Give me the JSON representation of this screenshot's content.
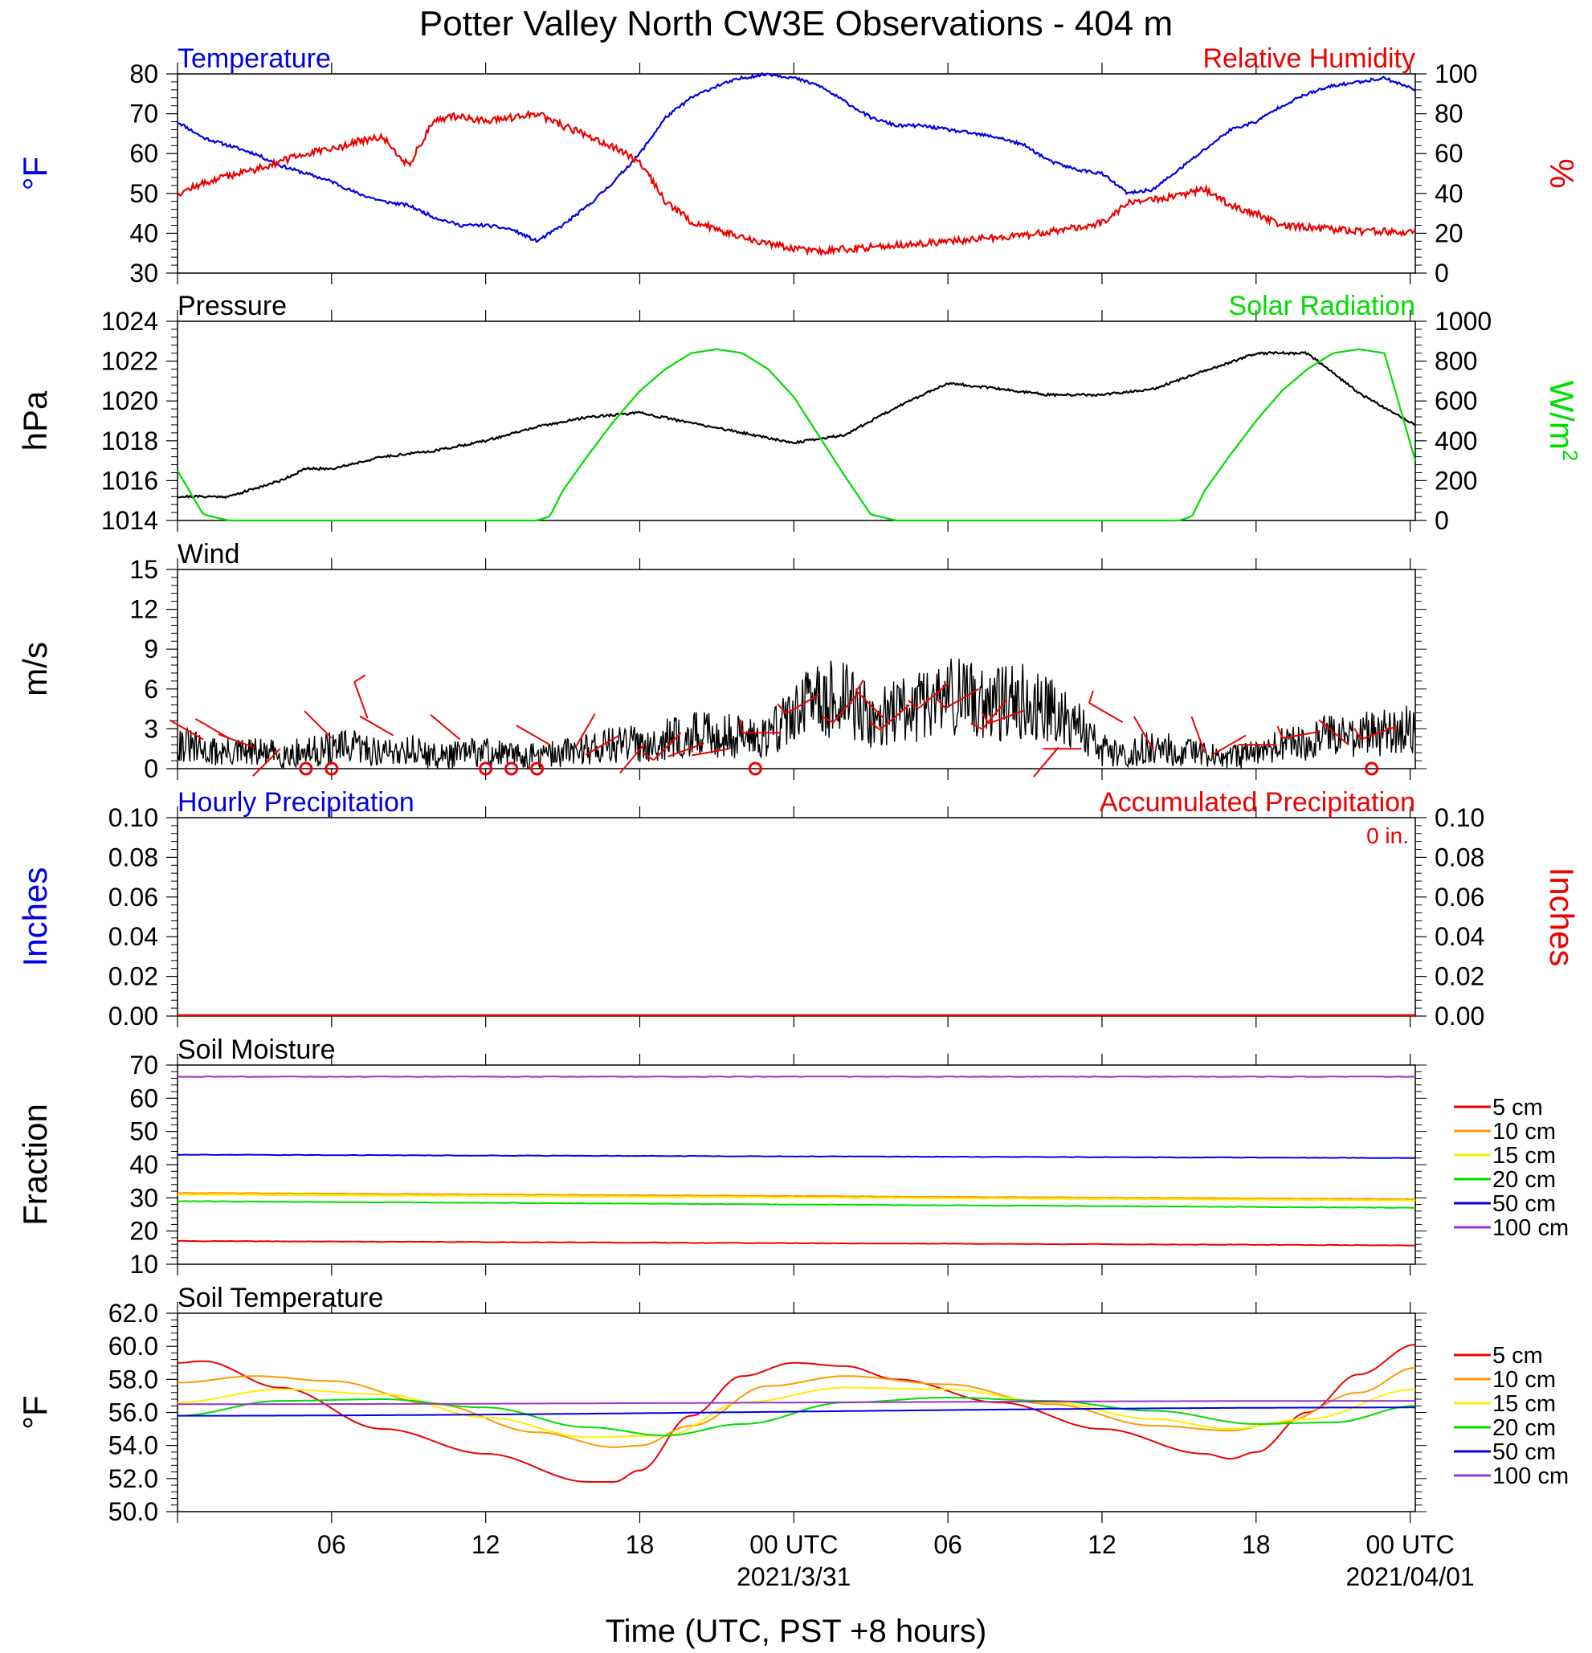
{
  "figure": {
    "title": "Potter Valley North CW3E Observations - 404 m",
    "xlabel": "Time (UTC, PST +8 hours)",
    "x_ticks": [
      {
        "hour": 6,
        "label": "06"
      },
      {
        "hour": 12,
        "label": "12"
      },
      {
        "hour": 18,
        "label": "18"
      },
      {
        "hour": 24,
        "label": "00 UTC",
        "date": "2021/3/31"
      },
      {
        "hour": 30,
        "label": "06"
      },
      {
        "hour": 36,
        "label": "12"
      },
      {
        "hour": 42,
        "label": "18"
      },
      {
        "hour": 48,
        "label": "00 UTC",
        "date": "2021/04/01"
      }
    ]
  },
  "colors": {
    "blue": "#0000e6",
    "red": "#ee0000",
    "green": "#00dd00",
    "black": "#000000",
    "orange": "#ff9900",
    "yellow": "#ffee00",
    "purple": "#9933cc"
  },
  "chart_data": [
    {
      "type": "line",
      "panel": "temperature-rh",
      "x_unit": "hours since 2021-03-30 00 UTC",
      "xlim": [
        0,
        48.2
      ],
      "left_title": "Temperature",
      "right_title": "Relative Humidity",
      "ylabel_left": "°F",
      "ylabel_right": "%",
      "ylim_left": [
        30,
        80
      ],
      "ylim_right": [
        0,
        100
      ],
      "yticks_left": [
        "30",
        "40",
        "50",
        "60",
        "70",
        "80"
      ],
      "yticks_right": [
        "0",
        "20",
        "40",
        "60",
        "80",
        "100"
      ],
      "series": [
        {
          "name": "Temperature",
          "axis": "left",
          "color": "#0000e6",
          "x": [
            0,
            1,
            2,
            3,
            4,
            5,
            6,
            7,
            8,
            9,
            10,
            11,
            12,
            13,
            14,
            15,
            16,
            17,
            18,
            19,
            20,
            21,
            22,
            23,
            24,
            25,
            26,
            27,
            28,
            29,
            30,
            31,
            32,
            33,
            34,
            35,
            36,
            37,
            38,
            39,
            40,
            41,
            42,
            43,
            44,
            45,
            46,
            47,
            48.2
          ],
          "values": [
            68,
            64,
            62,
            60,
            57,
            55,
            53,
            50,
            48,
            47,
            44,
            42,
            42,
            41,
            38,
            42,
            47,
            53,
            60,
            69,
            74,
            77,
            79,
            80,
            79,
            77,
            73,
            69,
            67,
            67,
            66,
            65,
            64,
            62,
            58,
            56,
            55,
            50,
            51,
            56,
            61,
            66,
            68,
            72,
            75,
            77,
            78,
            79,
            76
          ]
        },
        {
          "name": "Relative Humidity",
          "axis": "right",
          "color": "#ee0000",
          "x": [
            0,
            1,
            2,
            3,
            4,
            5,
            6,
            7,
            8,
            9,
            10,
            11,
            12,
            13,
            14,
            15,
            16,
            17,
            18,
            19,
            20,
            21,
            22,
            23,
            24,
            25,
            26,
            27,
            28,
            29,
            30,
            31,
            32,
            33,
            34,
            35,
            36,
            37,
            38,
            39,
            40,
            41,
            42,
            43,
            44,
            45,
            46,
            47,
            48.2
          ],
          "values": [
            40,
            45,
            49,
            52,
            56,
            60,
            62,
            66,
            68,
            54,
            77,
            79,
            76,
            78,
            80,
            74,
            69,
            63,
            56,
            36,
            26,
            22,
            18,
            15,
            12,
            11,
            12,
            13,
            14,
            15,
            16,
            17,
            18,
            19,
            21,
            23,
            25,
            35,
            37,
            39,
            42,
            34,
            30,
            24,
            23,
            22,
            21,
            21,
            20
          ]
        }
      ]
    },
    {
      "type": "line",
      "panel": "pressure-solar",
      "xlim": [
        0,
        48.2
      ],
      "left_title": "Pressure",
      "right_title": "Solar Radiation",
      "ylabel_left": "hPa",
      "ylabel_right": "W/m",
      "ylabel_right_sup": "2",
      "ylim_left": [
        1014,
        1024
      ],
      "ylim_right": [
        0,
        1000
      ],
      "yticks_left": [
        "1014",
        "1016",
        "1018",
        "1020",
        "1022",
        "1024"
      ],
      "yticks_right": [
        "0",
        "200",
        "400",
        "600",
        "800",
        "1000"
      ],
      "series": [
        {
          "name": "Pressure",
          "axis": "left",
          "color": "#000000",
          "x": [
            0,
            2,
            4,
            5,
            6,
            8,
            10,
            12,
            14,
            16,
            18,
            20,
            22,
            24,
            26,
            28,
            30,
            32,
            34,
            36,
            38,
            40,
            42,
            44,
            46,
            48.2
          ],
          "values": [
            1015.2,
            1015.2,
            1016.0,
            1016.6,
            1016.6,
            1017.2,
            1017.5,
            1018.0,
            1018.7,
            1019.2,
            1019.4,
            1018.9,
            1018.4,
            1017.9,
            1018.3,
            1019.7,
            1020.9,
            1020.6,
            1020.3,
            1020.3,
            1020.6,
            1021.5,
            1022.4,
            1022.4,
            1020.4,
            1018.8
          ]
        },
        {
          "name": "Solar Radiation",
          "axis": "right",
          "color": "#00dd00",
          "x": [
            0,
            1,
            2,
            13,
            14,
            14.5,
            15,
            16,
            17,
            18,
            19,
            20,
            21,
            22,
            23,
            24,
            25,
            26,
            27,
            28,
            29,
            38,
            39,
            39.5,
            40,
            41,
            42,
            43,
            44,
            45,
            46,
            47,
            48.2
          ],
          "values": [
            250,
            30,
            0,
            0,
            0,
            20,
            150,
            330,
            500,
            650,
            760,
            840,
            860,
            840,
            760,
            620,
            420,
            220,
            30,
            0,
            0,
            0,
            0,
            20,
            150,
            330,
            500,
            650,
            760,
            840,
            860,
            840,
            300
          ]
        }
      ]
    },
    {
      "type": "line",
      "panel": "wind",
      "xlim": [
        0,
        48.2
      ],
      "left_title": "Wind",
      "ylabel_left": "m/s",
      "ylim_left": [
        0,
        15
      ],
      "yticks_left": [
        "0",
        "3",
        "6",
        "9",
        "12",
        "15"
      ],
      "series": [
        {
          "name": "Wind Speed",
          "axis": "left",
          "color": "#000000",
          "x": [
            0,
            1,
            2,
            3,
            4,
            5,
            6,
            7,
            8,
            9,
            10,
            11,
            12,
            13,
            14,
            15,
            16,
            17,
            18,
            19,
            20,
            21,
            22,
            23,
            24,
            25,
            26,
            27,
            28,
            29,
            30,
            31,
            32,
            33,
            34,
            35,
            36,
            37,
            38,
            39,
            40,
            41,
            42,
            43,
            44,
            45,
            46,
            47,
            48.2
          ],
          "values": [
            2,
            1.3,
            1.2,
            1.2,
            1.1,
            1.2,
            1.5,
            1.6,
            1.2,
            1.5,
            0.9,
            1.1,
            1.3,
            1,
            0.9,
            1.2,
            1.6,
            1.8,
            1.9,
            2.2,
            2.5,
            2.6,
            2.4,
            2.6,
            4.2,
            5.2,
            5.3,
            3.8,
            4.2,
            4.8,
            5.5,
            5.2,
            4.9,
            5.1,
            4.6,
            3.6,
            1.4,
            1.2,
            1.6,
            1.3,
            1,
            0.8,
            1.1,
            1.8,
            2,
            2.6,
            2.5,
            2.8,
            2.9
          ]
        }
      ],
      "markers": {
        "calm_hours": [
          5,
          6,
          12,
          13,
          14,
          22.5,
          46.5
        ]
      },
      "barbs": [
        {
          "x": 1,
          "speed": 2.2,
          "dir": 300
        },
        {
          "x": 2,
          "speed": 2.3,
          "dir": 300
        },
        {
          "x": 3,
          "speed": 1.6,
          "dir": 290
        },
        {
          "x": 4,
          "speed": 1.5,
          "dir": 225
        },
        {
          "x": 6,
          "speed": 2.3,
          "dir": 315
        },
        {
          "x": 7.4,
          "speed": 3.8,
          "dir": 340
        },
        {
          "x": 8.4,
          "speed": 2.5,
          "dir": 300
        },
        {
          "x": 11,
          "speed": 2.2,
          "dir": 310
        },
        {
          "x": 14.5,
          "speed": 1.8,
          "dir": 300
        },
        {
          "x": 15.5,
          "speed": 1.6,
          "dir": 30
        },
        {
          "x": 17.2,
          "speed": 2.5,
          "dir": 240
        },
        {
          "x": 18.2,
          "speed": 1.9,
          "dir": 220
        },
        {
          "x": 19.6,
          "speed": 2.7,
          "dir": 225
        },
        {
          "x": 20.5,
          "speed": 1.9,
          "dir": 250
        },
        {
          "x": 21.5,
          "speed": 1.5,
          "dir": 260
        },
        {
          "x": 23.5,
          "speed": 2.7,
          "dir": 270
        },
        {
          "x": 25,
          "speed": 5.6,
          "dir": 240
        },
        {
          "x": 26.5,
          "speed": 5.7,
          "dir": 220
        },
        {
          "x": 27.5,
          "speed": 3.8,
          "dir": 315
        },
        {
          "x": 28.5,
          "speed": 4.8,
          "dir": 230
        },
        {
          "x": 30,
          "speed": 6.4,
          "dir": 230
        },
        {
          "x": 31.2,
          "speed": 6,
          "dir": 240
        },
        {
          "x": 32.3,
          "speed": 5.2,
          "dir": 220
        },
        {
          "x": 33,
          "speed": 4.4,
          "dir": 250
        },
        {
          "x": 34.3,
          "speed": 1.6,
          "dir": 220
        },
        {
          "x": 35.2,
          "speed": 1.5,
          "dir": 270
        },
        {
          "x": 36.8,
          "speed": 3.5,
          "dir": 300
        },
        {
          "x": 38,
          "speed": 1.4,
          "dir": 330
        },
        {
          "x": 40,
          "speed": 1.2,
          "dir": 340
        },
        {
          "x": 41.6,
          "speed": 2.5,
          "dir": 240
        },
        {
          "x": 42.8,
          "speed": 1.8,
          "dir": 270
        },
        {
          "x": 44.5,
          "speed": 2.8,
          "dir": 260
        },
        {
          "x": 45.6,
          "speed": 1.8,
          "dir": 310
        },
        {
          "x": 47.5,
          "speed": 3.2,
          "dir": 250
        }
      ]
    },
    {
      "type": "line",
      "panel": "precipitation",
      "xlim": [
        0,
        48.2
      ],
      "left_title": "Hourly Precipitation",
      "right_title": "Accumulated Precipitation",
      "total_label": "0 in.",
      "ylabel_left": "Inches",
      "ylabel_right": "Inches",
      "ylim_left": [
        0,
        0.1
      ],
      "ylim_right": [
        0,
        0.1
      ],
      "yticks_left": [
        "0.00",
        "0.02",
        "0.04",
        "0.06",
        "0.08",
        "0.10"
      ],
      "yticks_right": [
        "0.00",
        "0.02",
        "0.04",
        "0.06",
        "0.08",
        "0.10"
      ],
      "series": [
        {
          "name": "Hourly Precipitation",
          "axis": "left",
          "color": "#0000e6",
          "x": [
            0,
            48.2
          ],
          "values": [
            0,
            0
          ]
        },
        {
          "name": "Accumulated Precipitation",
          "axis": "right",
          "color": "#ee0000",
          "x": [
            0,
            48.2
          ],
          "values": [
            0,
            0
          ]
        }
      ]
    },
    {
      "type": "line",
      "panel": "soil-moisture",
      "xlim": [
        0,
        48.2
      ],
      "left_title": "Soil Moisture",
      "ylabel_left": "Fraction",
      "ylim_left": [
        10,
        70
      ],
      "yticks_left": [
        "10",
        "20",
        "30",
        "40",
        "50",
        "60",
        "70"
      ],
      "series": [
        {
          "name": "5 cm",
          "color": "#ee0000",
          "x": [
            0,
            48.2
          ],
          "values": [
            17,
            15.7
          ]
        },
        {
          "name": "10 cm",
          "color": "#ff9900",
          "x": [
            0,
            48.2
          ],
          "values": [
            31.5,
            29.6
          ]
        },
        {
          "name": "15 cm",
          "color": "#ffee00",
          "x": [
            0,
            48.2
          ],
          "values": [
            31,
            29.2
          ]
        },
        {
          "name": "20 cm",
          "color": "#00dd00",
          "x": [
            0,
            48.2
          ],
          "values": [
            29,
            27
          ]
        },
        {
          "name": "50 cm",
          "color": "#0000e6",
          "x": [
            0,
            48.2
          ],
          "values": [
            43,
            42
          ]
        },
        {
          "name": "100 cm",
          "color": "#9933cc",
          "x": [
            0,
            48.2
          ],
          "values": [
            66.5,
            66.5
          ]
        }
      ]
    },
    {
      "type": "line",
      "panel": "soil-temperature",
      "xlim": [
        0,
        48.2
      ],
      "left_title": "Soil Temperature",
      "ylabel_left": "°F",
      "ylim_left": [
        50,
        62
      ],
      "yticks_left": [
        "50.0",
        "52.0",
        "54.0",
        "56.0",
        "58.0",
        "60.0",
        "62.0"
      ],
      "series": [
        {
          "name": "5 cm",
          "color": "#ee0000",
          "x": [
            0,
            1,
            4,
            8,
            12,
            16,
            17,
            18,
            20,
            22,
            24,
            26,
            28,
            32,
            36,
            40,
            41,
            42,
            44,
            46,
            48.2
          ],
          "values": [
            59,
            59.1,
            57.5,
            55,
            53.5,
            51.8,
            51.8,
            52.5,
            55.8,
            58.2,
            59,
            58.8,
            58,
            56.6,
            55,
            53.5,
            53.2,
            53.6,
            56,
            58.3,
            60.1
          ]
        },
        {
          "name": "10 cm",
          "color": "#ff9900",
          "x": [
            0,
            3,
            6,
            10,
            14,
            17,
            18,
            20,
            23,
            26,
            30,
            34,
            38,
            41,
            43,
            46,
            48.2
          ],
          "values": [
            57.8,
            58.2,
            57.9,
            56.5,
            54.8,
            53.9,
            54,
            55.2,
            57.6,
            58.2,
            57.7,
            56.5,
            55.2,
            54.9,
            55.4,
            57.2,
            58.7
          ]
        },
        {
          "name": "15 cm",
          "color": "#ffee00",
          "x": [
            0,
            4,
            8,
            12,
            16,
            19,
            22,
            26,
            30,
            34,
            38,
            41,
            44,
            48.2
          ],
          "values": [
            56.6,
            57.4,
            57.1,
            55.7,
            54.5,
            54.6,
            56.6,
            57.5,
            57.4,
            56.6,
            55.6,
            55,
            55.6,
            57.4
          ]
        },
        {
          "name": "20 cm",
          "color": "#00dd00",
          "x": [
            0,
            4,
            8,
            12,
            16,
            19,
            22,
            26,
            30,
            34,
            38,
            42,
            45,
            48.2
          ],
          "values": [
            55.8,
            56.7,
            56.8,
            56.3,
            55.1,
            54.6,
            55.3,
            56.6,
            56.9,
            56.7,
            56.1,
            55.3,
            55.4,
            56.4
          ]
        },
        {
          "name": "50 cm",
          "color": "#0000e6",
          "x": [
            0,
            48.2
          ],
          "values": [
            55.8,
            56.3
          ]
        },
        {
          "name": "100 cm",
          "color": "#9933cc",
          "x": [
            0,
            48.2
          ],
          "values": [
            56.5,
            56.7
          ]
        }
      ]
    }
  ]
}
